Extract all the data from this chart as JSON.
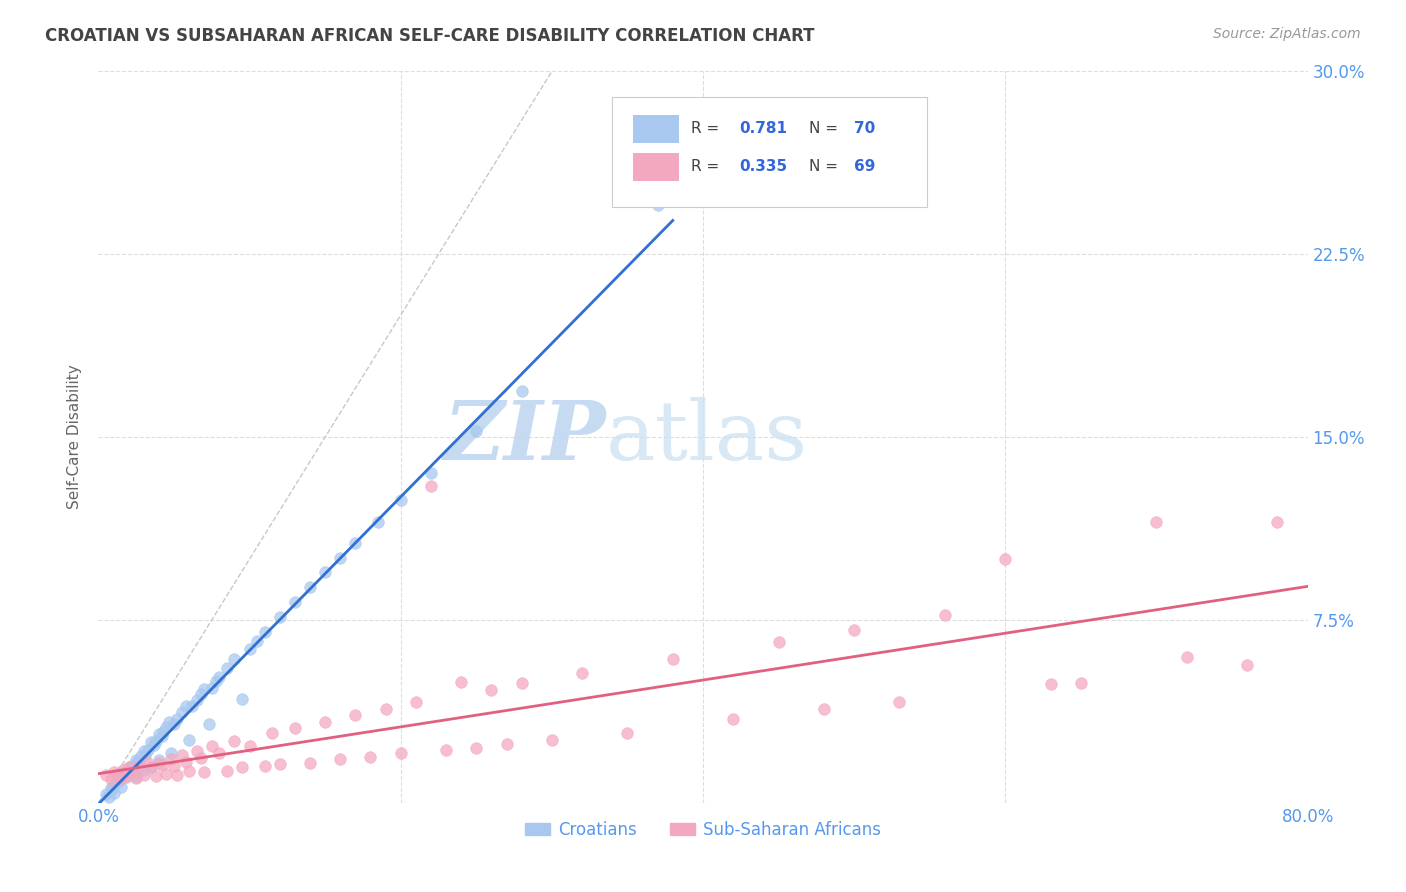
{
  "title": "CROATIAN VS SUBSAHARAN AFRICAN SELF-CARE DISABILITY CORRELATION CHART",
  "source": "Source: ZipAtlas.com",
  "ylabel": "Self-Care Disability",
  "xlim": [
    0,
    0.8
  ],
  "ylim": [
    0,
    0.3
  ],
  "xticks": [
    0.0,
    0.2,
    0.4,
    0.6,
    0.8
  ],
  "yticks": [
    0.0,
    0.075,
    0.15,
    0.225,
    0.3
  ],
  "croatian_color": "#A8C8F0",
  "subsaharan_color": "#F4A8C0",
  "trendline_croatian_color": "#3070D0",
  "trendline_subsaharan_color": "#E06080",
  "diagonal_color": "#C8C8C8",
  "grid_color": "#DDDDDD",
  "title_color": "#444444",
  "axis_tick_color": "#5599EE",
  "bg_color": "#FFFFFF",
  "watermark_color": "#D8EAF8",
  "R_croatian": 0.781,
  "N_croatian": 70,
  "R_subsaharan": 0.335,
  "N_subsaharan": 69
}
